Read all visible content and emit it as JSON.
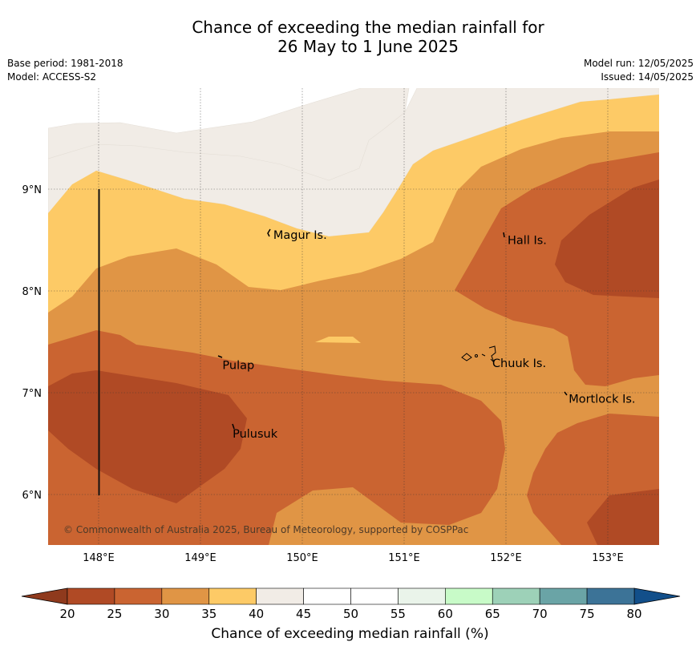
{
  "title_line1": "Chance of exceeding the median rainfall for",
  "title_line2": "26 May to 1 June 2025",
  "meta": {
    "base_period": "Base period: 1981-2018",
    "model": "Model: ACCESS-S2",
    "model_run": "Model run: 12/05/2025",
    "issued": "Issued: 14/05/2025"
  },
  "map": {
    "lon_ticks": [
      "148°E",
      "149°E",
      "150°E",
      "151°E",
      "152°E",
      "153°E"
    ],
    "lat_ticks": [
      "9°N",
      "8°N",
      "7°N",
      "6°N"
    ],
    "lon_range": [
      147.5,
      153.5
    ],
    "lat_range": [
      5.5,
      9.95
    ],
    "grid": true,
    "places": [
      {
        "name": "Magur Is.",
        "lon": 149.7,
        "lat": 8.55
      },
      {
        "name": "Hall Is.",
        "lon": 152.0,
        "lat": 8.5
      },
      {
        "name": "Pulap",
        "lon": 149.2,
        "lat": 7.27
      },
      {
        "name": "Chuuk Is.",
        "lon": 151.85,
        "lat": 7.29
      },
      {
        "name": "Mortlock Is.",
        "lon": 152.6,
        "lat": 6.94
      },
      {
        "name": "Pulusuk",
        "lon": 149.3,
        "lat": 6.6
      }
    ],
    "copyright": "© Commonwealth of Australia 2025, Bureau of Meteorology, supported by COSPPac"
  },
  "legend": {
    "label": "Chance of exceeding median rainfall (%)",
    "ticks": [
      "20",
      "25",
      "30",
      "35",
      "40",
      "45",
      "50",
      "55",
      "60",
      "65",
      "70",
      "75",
      "80"
    ],
    "colors": [
      "#b04a25",
      "#ca6431",
      "#e09545",
      "#fdca66",
      "#f1ece6",
      "#ffffff",
      "#ffffff",
      "#eaf4ea",
      "#c8fbc8",
      "#9dd1b8",
      "#6aa4a6",
      "#3c7397"
    ],
    "low_color": "#8f3a1d",
    "high_color": "#124f8a"
  }
}
